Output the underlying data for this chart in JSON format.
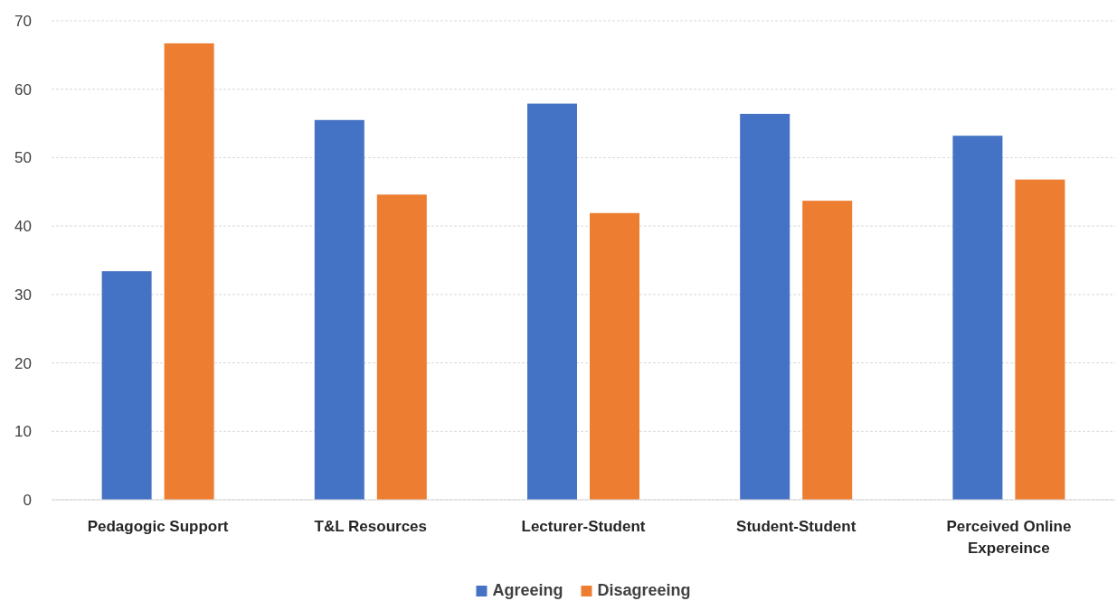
{
  "chart_data": {
    "type": "bar",
    "categories": [
      "Pedagogic Support",
      "T&L Resources",
      "Lecturer-Student",
      "Student-Student",
      "Perceived Online Expereince"
    ],
    "series": [
      {
        "name": "Agreeing",
        "color": "#4472c4",
        "values": [
          33.4,
          55.5,
          57.9,
          56.4,
          53.2
        ]
      },
      {
        "name": "Disagreeing",
        "color": "#ed7d31",
        "values": [
          66.7,
          44.6,
          41.9,
          43.7,
          46.8
        ]
      }
    ],
    "ylim": [
      0,
      70
    ],
    "yticks": [
      0,
      10,
      20,
      30,
      40,
      50,
      60,
      70
    ],
    "grid": "y",
    "legend": "bottom"
  }
}
